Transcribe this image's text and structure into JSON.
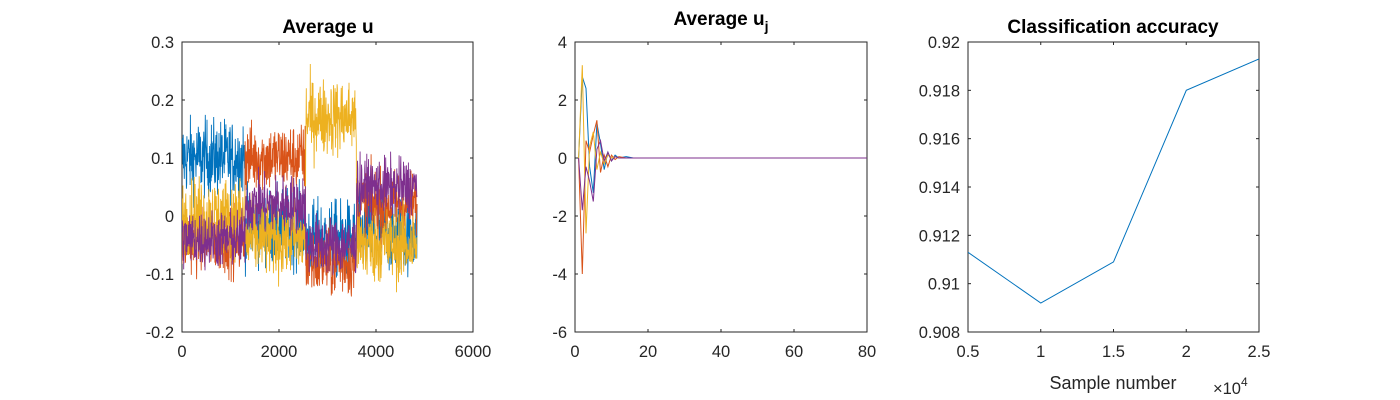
{
  "chart_data": [
    {
      "type": "line",
      "title": "Average u",
      "xlabel": "",
      "ylabel": "",
      "xlim": [
        0,
        6000
      ],
      "ylim": [
        -0.2,
        0.3
      ],
      "xticks": [
        "0",
        "2000",
        "4000",
        "6000"
      ],
      "yticks": [
        "-0.2",
        "-0.1",
        "0",
        "0.1",
        "0.2",
        "0.3"
      ],
      "grid": false,
      "x_range": [
        0,
        4850
      ],
      "segments": [
        1300,
        2550,
        3600,
        4850
      ],
      "series": [
        {
          "color": "#0072BD",
          "segment_means": [
            0.1,
            -0.02,
            -0.04,
            -0.03
          ],
          "noise": 0.033
        },
        {
          "color": "#D95319",
          "segment_means": [
            -0.04,
            0.1,
            -0.08,
            0.02
          ],
          "noise": 0.03
        },
        {
          "color": "#EDB120",
          "segment_means": [
            0.0,
            -0.04,
            0.17,
            -0.05
          ],
          "noise": 0.033
        },
        {
          "color": "#7E2F8E",
          "segment_means": [
            -0.04,
            0.02,
            -0.05,
            0.05
          ],
          "noise": 0.025
        }
      ]
    },
    {
      "type": "line",
      "title": "Average u",
      "title_subscript": "j",
      "xlabel": "",
      "ylabel": "",
      "xlim": [
        0,
        80
      ],
      "ylim": [
        -6,
        4
      ],
      "xticks": [
        "0",
        "20",
        "40",
        "60",
        "80"
      ],
      "yticks": [
        "-6",
        "-4",
        "-2",
        "0",
        "2",
        "4"
      ],
      "grid": false,
      "series": [
        {
          "color": "#0072BD",
          "x": [
            1,
            2,
            3,
            4,
            5,
            6,
            7,
            8,
            9,
            10,
            11,
            12,
            14,
            16,
            20,
            80
          ],
          "y": [
            0,
            2.8,
            2.4,
            -0.3,
            -1.2,
            1.2,
            0.5,
            -0.4,
            0.2,
            -0.1,
            0.1,
            0,
            0.05,
            0,
            0,
            0
          ]
        },
        {
          "color": "#D95319",
          "x": [
            1,
            2,
            3,
            4,
            5,
            6,
            7,
            8,
            9,
            10,
            11,
            12,
            14,
            16,
            20,
            80
          ],
          "y": [
            0,
            -4.0,
            0.6,
            0.2,
            0.8,
            1.3,
            -0.5,
            0.1,
            -0.3,
            0.1,
            -0.05,
            0.05,
            0,
            0,
            0,
            0
          ]
        },
        {
          "color": "#EDB120",
          "x": [
            1,
            2,
            3,
            4,
            5,
            6,
            7,
            8,
            9,
            10,
            11,
            12,
            14,
            16,
            20,
            80
          ],
          "y": [
            0,
            3.2,
            -2.6,
            0.4,
            0.9,
            -0.4,
            0.2,
            -0.2,
            0.1,
            0,
            0.05,
            0,
            0,
            0,
            0,
            0
          ]
        },
        {
          "color": "#7E2F8E",
          "x": [
            1,
            2,
            3,
            4,
            5,
            6,
            7,
            8,
            9,
            10,
            11,
            12,
            14,
            16,
            20,
            80
          ],
          "y": [
            0,
            -1.8,
            -0.3,
            -0.8,
            -1.5,
            0.3,
            0.6,
            -0.1,
            0.2,
            -0.1,
            0.05,
            0,
            0,
            0,
            0,
            0
          ]
        }
      ]
    },
    {
      "type": "line",
      "title": "Classification accuracy",
      "xlabel": "Sample number",
      "ylabel": "",
      "xlim": [
        0.5,
        2.5
      ],
      "ylim": [
        0.908,
        0.92
      ],
      "xticks": [
        "0.5",
        "1",
        "1.5",
        "2",
        "2.5"
      ],
      "yticks": [
        "0.908",
        "0.91",
        "0.912",
        "0.914",
        "0.916",
        "0.918",
        "0.92"
      ],
      "x_exponent_base": "×10",
      "x_exponent_power": "4",
      "grid": false,
      "series": [
        {
          "color": "#0072BD",
          "x": [
            0.5,
            1.0,
            1.5,
            2.0,
            2.5
          ],
          "y": [
            0.9113,
            0.9092,
            0.9109,
            0.918,
            0.9193
          ]
        }
      ]
    }
  ]
}
